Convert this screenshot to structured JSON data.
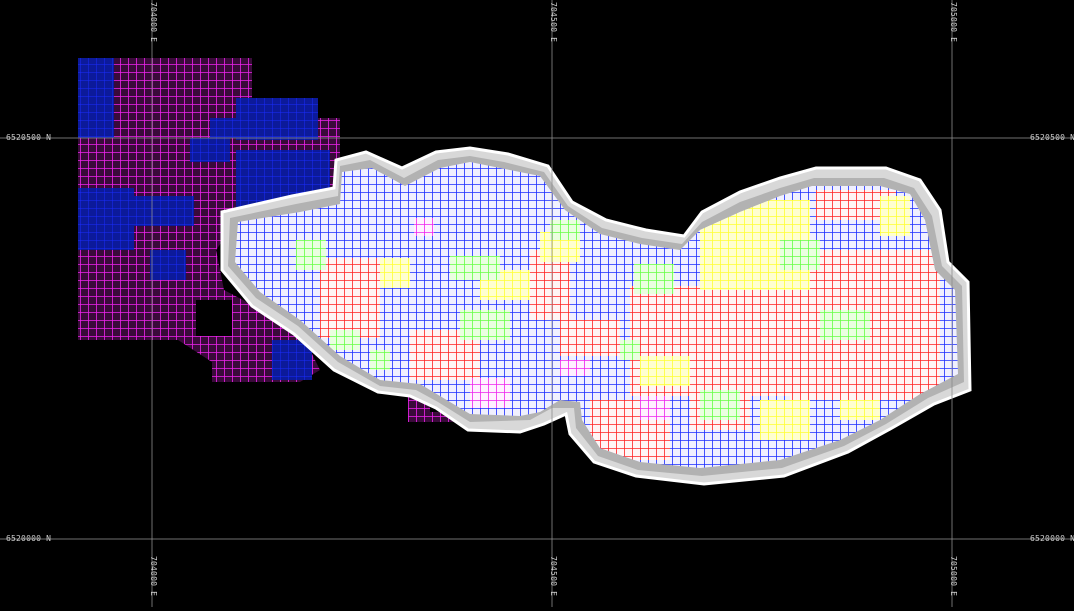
{
  "map": {
    "background": "#000000",
    "grid_color": "#8c8c8c",
    "grid_lines": {
      "eastings": [
        "704000 E",
        "704500 E",
        "705000 E"
      ],
      "northings": [
        "6520500 N",
        "6520000 N"
      ]
    }
  },
  "legend_colors": {
    "blue": "#1a2cff",
    "dark_blue": "#0f1ea8",
    "magenta": "#ee22ee",
    "red": "#ff2222",
    "yellow": "#ffff33",
    "green": "#66ff44",
    "pit_shell": "#e8e8e8"
  }
}
